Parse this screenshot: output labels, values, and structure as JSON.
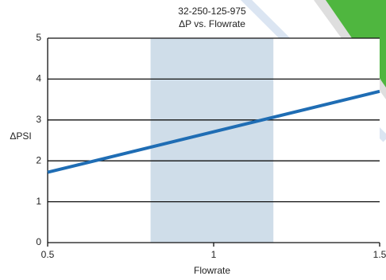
{
  "chart_data": {
    "type": "line",
    "title": "32-250-125-975",
    "subtitle": "ΔP vs. Flowrate",
    "x_label": "Flowrate",
    "y_label": "ΔPSI",
    "x": [
      0.5,
      1.5
    ],
    "series": [
      {
        "name": "ΔP",
        "color": "#1f6db4",
        "values": [
          1.72,
          3.7
        ]
      }
    ],
    "shaded_xrange": [
      0.81,
      1.18
    ],
    "shade_color": "#cfdde9",
    "xlim": [
      0.5,
      1.5
    ],
    "xticks": [
      0.5,
      1,
      1.5
    ],
    "ylim": [
      0,
      5
    ],
    "yticks": [
      0,
      1,
      2,
      3,
      4,
      5
    ],
    "grid": true
  }
}
